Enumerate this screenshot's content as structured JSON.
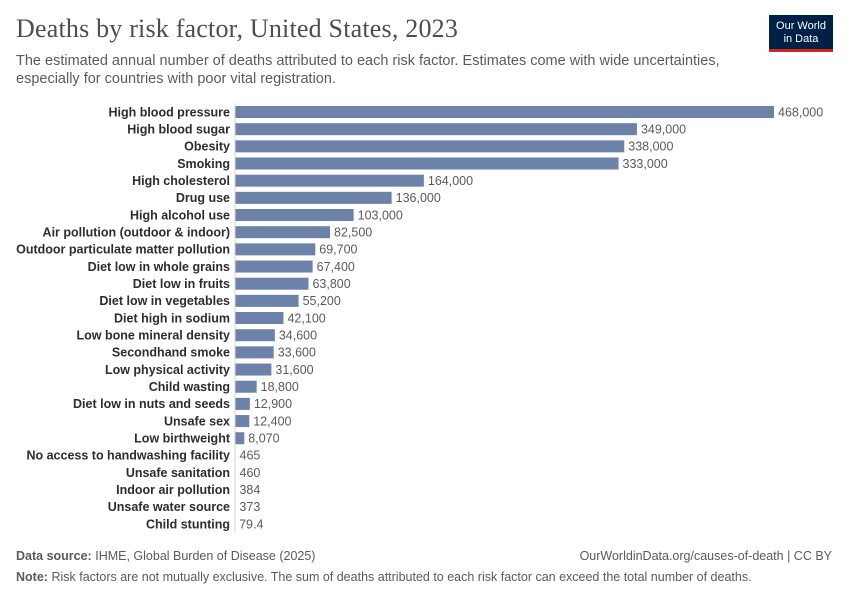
{
  "header": {
    "title": "Deaths by risk factor, United States, 2023",
    "subtitle": "The estimated annual number of deaths attributed to each risk factor. Estimates come with wide uncertainties, especially for countries with poor vital registration."
  },
  "logo": {
    "line1": "Our World",
    "line2": "in Data"
  },
  "footer": {
    "source_label": "Data source:",
    "source_text": "IHME, Global Burden of Disease (2025)",
    "url_text": "OurWorldinData.org/causes-of-death | CC BY",
    "note_label": "Note:",
    "note_text": "Risk factors are not mutually exclusive. The sum of deaths attributed to each risk factor can exceed the total number of deaths."
  },
  "colors": {
    "bar": "#6d82a8",
    "axis": "#d6d6d6",
    "label": "#2d2d2d",
    "value": "#5b5b5b"
  },
  "chart_data": {
    "type": "bar",
    "orientation": "horizontal",
    "categories": [
      "High blood pressure",
      "High blood sugar",
      "Obesity",
      "Smoking",
      "High cholesterol",
      "Drug use",
      "High alcohol use",
      "Air pollution (outdoor & indoor)",
      "Outdoor particulate matter pollution",
      "Diet low in whole grains",
      "Diet low in fruits",
      "Diet low in vegetables",
      "Diet high in sodium",
      "Low bone mineral density",
      "Secondhand smoke",
      "Low physical activity",
      "Child wasting",
      "Diet low in nuts and seeds",
      "Unsafe sex",
      "Low birthweight",
      "No access to handwashing facility",
      "Unsafe sanitation",
      "Indoor air pollution",
      "Unsafe water source",
      "Child stunting"
    ],
    "values": [
      468000,
      349000,
      338000,
      333000,
      164000,
      136000,
      103000,
      82500,
      69700,
      67400,
      63800,
      55200,
      42100,
      34600,
      33600,
      31600,
      18800,
      12900,
      12400,
      8070,
      465,
      460,
      384,
      373,
      79.4
    ],
    "value_labels": [
      "468,000",
      "349,000",
      "338,000",
      "333,000",
      "164,000",
      "136,000",
      "103,000",
      "82,500",
      "69,700",
      "67,400",
      "63,800",
      "55,200",
      "42,100",
      "34,600",
      "33,600",
      "31,600",
      "18,800",
      "12,900",
      "12,400",
      "8,070",
      "465",
      "460",
      "384",
      "373",
      "79.4"
    ],
    "xlim": [
      0,
      468000
    ]
  }
}
